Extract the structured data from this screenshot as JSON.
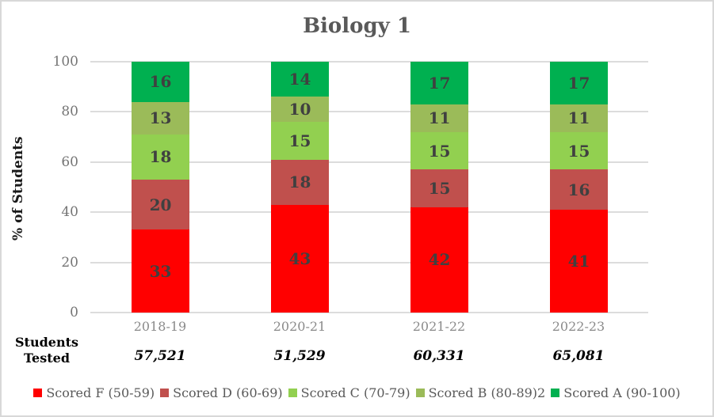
{
  "title": "Biology 1",
  "ylabel": "% of Students",
  "students_tested_label": {
    "line1": "Students",
    "line2": "Tested"
  },
  "chart_data": {
    "type": "bar",
    "stacked": true,
    "title": "Biology 1",
    "ylabel": "% of Students",
    "xlabel": "",
    "categories": [
      "2018-19",
      "2020-21",
      "2021-22",
      "2022-23"
    ],
    "series": [
      {
        "name": "Scored F (50-59)",
        "color": "#ff0000",
        "values": [
          33,
          43,
          42,
          41
        ]
      },
      {
        "name": "Scored D (60-69)",
        "color": "#c0504d",
        "values": [
          20,
          18,
          15,
          16
        ]
      },
      {
        "name": "Scored C (70-79)",
        "color": "#92d050",
        "values": [
          18,
          15,
          15,
          15
        ]
      },
      {
        "name": "Scored B (80-89)2",
        "color": "#9bbb59",
        "values": [
          13,
          10,
          11,
          11
        ]
      },
      {
        "name": "Scored A (90-100)",
        "color": "#00b050",
        "values": [
          16,
          14,
          17,
          17
        ]
      }
    ],
    "students_tested": [
      "57,521",
      "51,529",
      "60,331",
      "65,081"
    ],
    "ylim": [
      0,
      100
    ],
    "yticks": [
      0,
      20,
      40,
      60,
      80,
      100
    ],
    "grid": true,
    "legend_position": "bottom",
    "label_color": "#404040",
    "gridline_color": "#dcdcdc"
  }
}
